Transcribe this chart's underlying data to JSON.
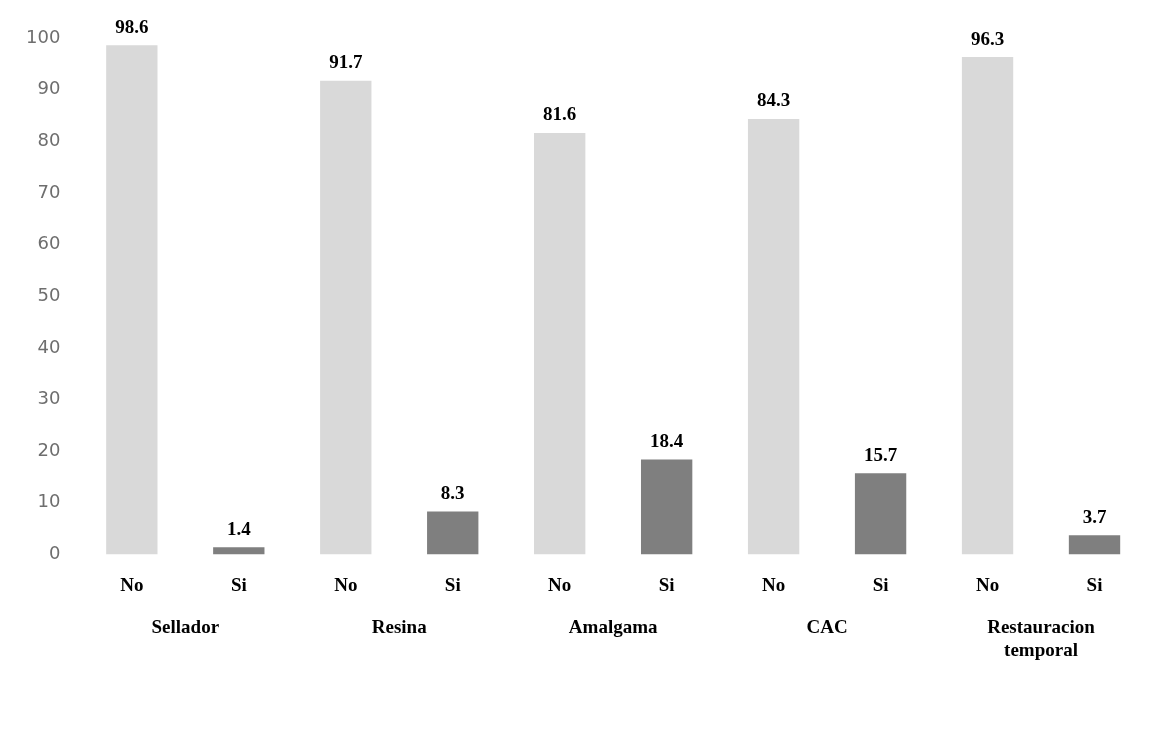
{
  "chart_data": {
    "type": "bar",
    "categories": [
      "Sellador",
      "Resina",
      "Amalgama",
      "CAC",
      "Restauracion temporal"
    ],
    "series": [
      {
        "name": "No",
        "color": "#d9d9d9",
        "values": [
          98.6,
          91.7,
          81.6,
          84.3,
          96.3
        ]
      },
      {
        "name": "Si",
        "color": "#7f7f7f",
        "values": [
          1.4,
          8.3,
          18.4,
          15.7,
          3.7
        ]
      }
    ],
    "ylim": [
      0,
      100
    ],
    "yticks": [
      0,
      10,
      20,
      30,
      40,
      50,
      60,
      70,
      80,
      90,
      100
    ],
    "grid": false,
    "legend": false,
    "data_labels": true
  }
}
